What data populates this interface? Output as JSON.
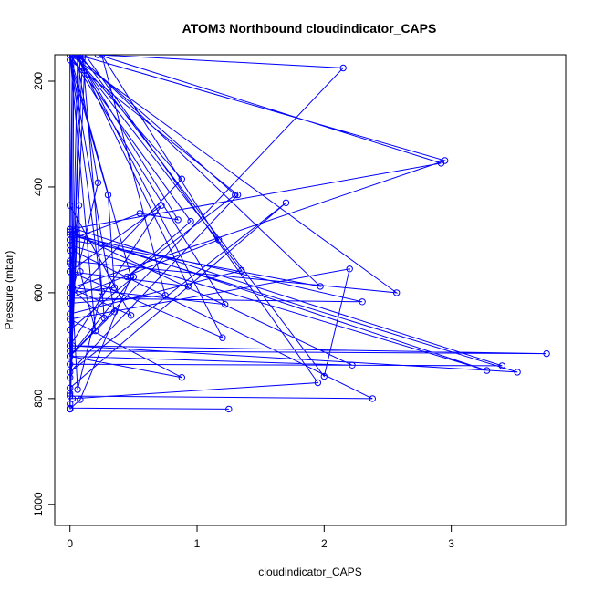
{
  "chart_data": {
    "type": "line",
    "title": "ATOM3 Northbound cloudindicator_CAPS",
    "xlabel": "cloudindicator_CAPS",
    "ylabel": "Pressure (mbar)",
    "xlim": [
      -0.12,
      3.9
    ],
    "ylim": [
      1040,
      150
    ],
    "y_reversed": true,
    "x_ticks": [
      0,
      1,
      2,
      3
    ],
    "y_ticks": [
      200,
      400,
      600,
      800,
      1000
    ],
    "grid": false,
    "legend": "none",
    "marker": "open-circle",
    "colors": {
      "series": "#0000ff",
      "axis": "#000000",
      "background": "#ffffff"
    },
    "series": [
      {
        "points": [
          [
            1.25,
            820
          ],
          [
            0.0,
            818
          ],
          [
            0.05,
            480
          ],
          [
            3.4,
            738
          ],
          [
            0.0,
            735
          ],
          [
            0.0,
            760
          ],
          [
            0.02,
            800
          ],
          [
            1.95,
            770
          ],
          [
            0.12,
            150
          ],
          [
            0.0,
            790
          ],
          [
            0.0,
            820
          ],
          [
            0.02,
            700
          ],
          [
            3.75,
            715
          ],
          [
            0.0,
            710
          ],
          [
            0.0,
            690
          ],
          [
            0.02,
            520
          ],
          [
            2.38,
            800
          ],
          [
            0.0,
            795
          ],
          [
            0.0,
            820
          ],
          [
            0.02,
            490
          ],
          [
            0.03,
            150
          ],
          [
            0.02,
            590
          ],
          [
            2.95,
            350
          ],
          [
            0.06,
            150
          ],
          [
            0.0,
            810
          ],
          [
            0.08,
            150
          ],
          [
            2.0,
            758
          ],
          [
            2.2,
            555
          ],
          [
            0.0,
            650
          ],
          [
            0.88,
            760
          ],
          [
            0.0,
            720
          ],
          [
            2.15,
            175
          ],
          [
            0.22,
            150
          ],
          [
            2.92,
            355
          ],
          [
            0.0,
            480
          ],
          [
            0.02,
            150
          ],
          [
            0.0,
            780
          ],
          [
            1.7,
            430
          ],
          [
            0.0,
            750
          ],
          [
            1.32,
            415
          ],
          [
            0.0,
            160
          ],
          [
            0.3,
            415
          ],
          [
            0.35,
            590
          ],
          [
            0.0,
            600
          ],
          [
            0.0,
            700
          ],
          [
            3.52,
            750
          ],
          [
            0.0,
            490
          ],
          [
            2.3,
            617
          ],
          [
            0.0,
            610
          ],
          [
            0.0,
            150
          ],
          [
            2.57,
            600
          ],
          [
            0.0,
            540
          ],
          [
            0.0,
            510
          ],
          [
            3.28,
            747
          ],
          [
            0.0,
            485
          ],
          [
            2.22,
            737
          ],
          [
            0.0,
            720
          ],
          [
            0.0,
            590
          ],
          [
            1.22,
            622
          ],
          [
            0.0,
            150
          ],
          [
            0.95,
            465
          ],
          [
            0.45,
            570
          ],
          [
            1.3,
            415
          ],
          [
            0.05,
            150
          ],
          [
            0.85,
            462
          ],
          [
            0.55,
            450
          ],
          [
            0.0,
            500
          ],
          [
            0.0,
            560
          ],
          [
            1.2,
            685
          ],
          [
            0.06,
            150
          ],
          [
            1.97,
            588
          ],
          [
            0.0,
            500
          ],
          [
            0.0,
            640
          ],
          [
            1.35,
            558
          ],
          [
            0.03,
            150
          ],
          [
            0.88,
            385
          ],
          [
            0.0,
            610
          ],
          [
            1.17,
            500
          ],
          [
            0.25,
            150
          ],
          [
            0.75,
            605
          ],
          [
            0.0,
            620
          ],
          [
            0.22,
            392
          ],
          [
            0.05,
            150
          ],
          [
            0.93,
            588
          ],
          [
            0.0,
            560
          ],
          [
            0.72,
            435
          ],
          [
            0.0,
            700
          ],
          [
            0.1,
            150
          ],
          [
            0.27,
            648
          ],
          [
            0.0,
            590
          ],
          [
            0.48,
            643
          ],
          [
            0.0,
            435
          ],
          [
            0.0,
            150
          ],
          [
            0.35,
            636
          ],
          [
            0.0,
            720
          ],
          [
            0.5,
            570
          ],
          [
            0.0,
            670
          ],
          [
            0.0,
            150
          ],
          [
            0.2,
            672
          ],
          [
            0.08,
            560
          ],
          [
            0.07,
            435
          ],
          [
            0.0,
            560
          ],
          [
            0.0,
            545
          ],
          [
            0.0,
            150
          ],
          [
            0.25,
            598
          ],
          [
            0.06,
            783
          ],
          [
            0.0,
            520
          ],
          [
            0.0,
            480
          ],
          [
            0.0,
            150
          ],
          [
            0.48,
            570
          ],
          [
            0.08,
            802
          ],
          [
            0.0,
            820
          ]
        ]
      }
    ]
  }
}
